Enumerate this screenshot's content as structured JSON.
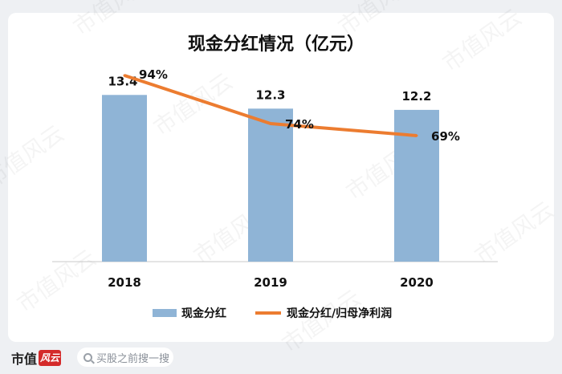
{
  "chart_data": {
    "type": "bar",
    "title": "现金分红情况（亿元）",
    "categories": [
      "2018",
      "2019",
      "2020"
    ],
    "series": [
      {
        "name": "现金分红",
        "type": "bar",
        "values": [
          13.4,
          12.3,
          12.2
        ],
        "labels": [
          "13.4",
          "12.3",
          "12.2"
        ],
        "color": "#8fb4d6"
      },
      {
        "name": "现金分红/归母净利润",
        "type": "line",
        "values": [
          94,
          74,
          69
        ],
        "labels": [
          "94%",
          "74%",
          "69%"
        ],
        "color": "#ec7c30"
      }
    ],
    "bar_axis_range": [
      0,
      15
    ],
    "line_axis_range": [
      0,
      110
    ],
    "grid": false,
    "legend_position": "bottom"
  },
  "watermark_text": "市值风云",
  "footer": {
    "brand_text": "市值",
    "brand_logo_text": "风云",
    "search_placeholder": "买股之前搜一搜",
    "search_icon": "search-icon"
  }
}
